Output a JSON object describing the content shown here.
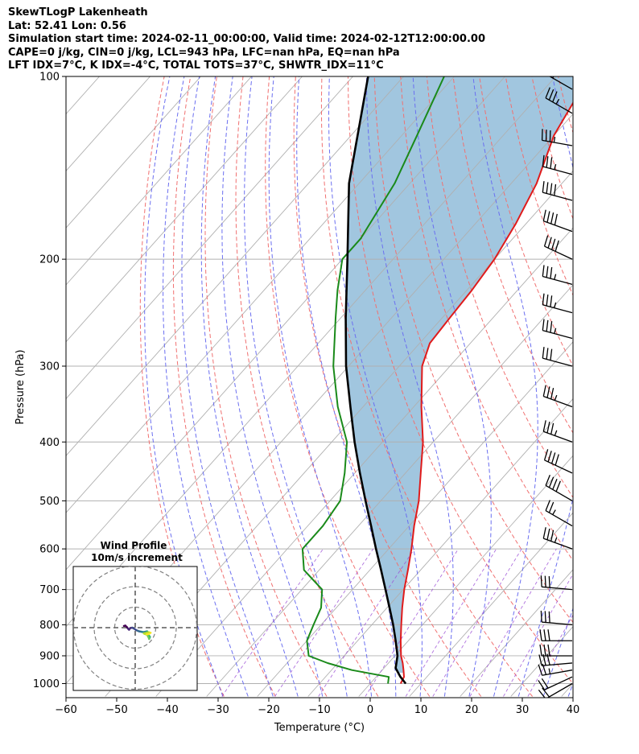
{
  "header": {
    "line1": "SkewTLogP Lakenheath",
    "line2": "Lat: 52.41   Lon: 0.56",
    "line3": "Simulation start time: 2024-02-11_00:00:00, Valid time: 2024-02-12T12:00:00.00",
    "line4": "CAPE=0 j/kg, CIN=0 j/kg, LCL=943 hPa, LFC=nan hPa, EQ=nan hPa",
    "line5": "LFT IDX=7°C, K IDX=-4°C, TOTAL TOTS=37°C, SHWTR_IDX=11°C"
  },
  "chart_data": {
    "type": "skewt",
    "xlabel": "Temperature (°C)",
    "ylabel": "Pressure (hPa)",
    "xlim": [
      -60,
      40
    ],
    "ylim": [
      1050,
      100
    ],
    "xticks": [
      "−60",
      "−50",
      "−40",
      "−30",
      "−20",
      "−10",
      "0",
      "10",
      "20",
      "30",
      "40"
    ],
    "yticks": [
      "100",
      "200",
      "300",
      "400",
      "500",
      "600",
      "700",
      "800",
      "900",
      "1000"
    ],
    "pressure_ticks": [
      100,
      200,
      300,
      400,
      500,
      600,
      700,
      800,
      900,
      1000
    ],
    "temperature_ticks": [
      -60,
      -50,
      -40,
      -30,
      -20,
      -10,
      0,
      10,
      20,
      30,
      40
    ],
    "temperature_profile": [
      [
        1000,
        6
      ],
      [
        975,
        5.5
      ],
      [
        950,
        4.2
      ],
      [
        925,
        2.8
      ],
      [
        900,
        1.2
      ],
      [
        850,
        -1.5
      ],
      [
        800,
        -4.2
      ],
      [
        750,
        -7
      ],
      [
        700,
        -9.8
      ],
      [
        650,
        -12.5
      ],
      [
        600,
        -15.5
      ],
      [
        550,
        -19
      ],
      [
        500,
        -22.5
      ],
      [
        450,
        -27
      ],
      [
        400,
        -32
      ],
      [
        350,
        -38.5
      ],
      [
        300,
        -45.5
      ],
      [
        275,
        -48
      ],
      [
        250,
        -48.5
      ],
      [
        225,
        -49
      ],
      [
        200,
        -50
      ],
      [
        175,
        -52
      ],
      [
        150,
        -55
      ],
      [
        125,
        -60
      ],
      [
        110,
        -62
      ],
      [
        100,
        -63.5
      ]
    ],
    "dewpoint_profile": [
      [
        1000,
        3.5
      ],
      [
        975,
        2.5
      ],
      [
        950,
        -6
      ],
      [
        925,
        -12
      ],
      [
        900,
        -17
      ],
      [
        850,
        -20
      ],
      [
        800,
        -21.5
      ],
      [
        750,
        -23
      ],
      [
        700,
        -26
      ],
      [
        650,
        -33
      ],
      [
        600,
        -37
      ],
      [
        550,
        -37
      ],
      [
        500,
        -38
      ],
      [
        450,
        -42
      ],
      [
        400,
        -47
      ],
      [
        350,
        -55
      ],
      [
        300,
        -63
      ],
      [
        250,
        -71
      ],
      [
        225,
        -75.5
      ],
      [
        200,
        -80
      ],
      [
        185,
        -80
      ],
      [
        150,
        -83
      ],
      [
        125,
        -87
      ],
      [
        100,
        -92
      ]
    ],
    "parcel_profile": [
      [
        1000,
        7
      ],
      [
        975,
        4.8
      ],
      [
        943,
        2.3
      ],
      [
        900,
        0.5
      ],
      [
        850,
        -2.5
      ],
      [
        800,
        -5.8
      ],
      [
        750,
        -9.5
      ],
      [
        700,
        -13.5
      ],
      [
        650,
        -17.8
      ],
      [
        600,
        -22.5
      ],
      [
        550,
        -27.5
      ],
      [
        500,
        -33
      ],
      [
        450,
        -39
      ],
      [
        400,
        -45.5
      ],
      [
        350,
        -52.5
      ],
      [
        300,
        -60.5
      ],
      [
        250,
        -69
      ],
      [
        200,
        -79
      ],
      [
        150,
        -92
      ],
      [
        100,
        -107
      ]
    ],
    "wind_barbs": [
      {
        "p": 1000,
        "speed_kt": 20,
        "dir_deg": 240
      },
      {
        "p": 975,
        "speed_kt": 20,
        "dir_deg": 245
      },
      {
        "p": 950,
        "speed_kt": 25,
        "dir_deg": 260
      },
      {
        "p": 925,
        "speed_kt": 30,
        "dir_deg": 265
      },
      {
        "p": 900,
        "speed_kt": 30,
        "dir_deg": 270
      },
      {
        "p": 850,
        "speed_kt": 30,
        "dir_deg": 270
      },
      {
        "p": 800,
        "speed_kt": 30,
        "dir_deg": 275
      },
      {
        "p": 700,
        "speed_kt": 30,
        "dir_deg": 275
      },
      {
        "p": 600,
        "speed_kt": 35,
        "dir_deg": 290
      },
      {
        "p": 550,
        "speed_kt": 25,
        "dir_deg": 300
      },
      {
        "p": 500,
        "speed_kt": 40,
        "dir_deg": 300
      },
      {
        "p": 450,
        "speed_kt": 40,
        "dir_deg": 295
      },
      {
        "p": 400,
        "speed_kt": 35,
        "dir_deg": 290
      },
      {
        "p": 350,
        "speed_kt": 35,
        "dir_deg": 290
      },
      {
        "p": 300,
        "speed_kt": 30,
        "dir_deg": 285
      },
      {
        "p": 270,
        "speed_kt": 35,
        "dir_deg": 285
      },
      {
        "p": 245,
        "speed_kt": 35,
        "dir_deg": 285
      },
      {
        "p": 220,
        "speed_kt": 35,
        "dir_deg": 285
      },
      {
        "p": 200,
        "speed_kt": 40,
        "dir_deg": 295
      },
      {
        "p": 180,
        "speed_kt": 40,
        "dir_deg": 290
      },
      {
        "p": 160,
        "speed_kt": 40,
        "dir_deg": 285
      },
      {
        "p": 145,
        "speed_kt": 35,
        "dir_deg": 285
      },
      {
        "p": 130,
        "speed_kt": 35,
        "dir_deg": 280
      },
      {
        "p": 115,
        "speed_kt": 35,
        "dir_deg": 300
      },
      {
        "p": 105,
        "speed_kt": 25,
        "dir_deg": 300
      }
    ],
    "inset": {
      "title": "Wind Profile",
      "subtitle": "10m/s increment",
      "rings_ms": [
        10,
        20,
        30
      ],
      "hodograph_uv": [
        [
          -5.5,
          0.8
        ],
        [
          -4.8,
          1
        ],
        [
          -4,
          0.2
        ],
        [
          -3.5,
          -0.5
        ],
        [
          -3,
          -1
        ],
        [
          -2.5,
          -0.3
        ],
        [
          -1.5,
          0
        ],
        [
          -0.5,
          -0.5
        ],
        [
          0.5,
          -1.2
        ],
        [
          1.2,
          -1.5
        ],
        [
          2,
          -1.8
        ],
        [
          3,
          -2
        ],
        [
          4,
          -2.2
        ],
        [
          5,
          -2
        ],
        [
          5.8,
          -1.8
        ],
        [
          6,
          -2.2
        ],
        [
          5.8,
          -3
        ],
        [
          6.5,
          -3.5
        ],
        [
          7.2,
          -4.5
        ],
        [
          6.8,
          -5.5
        ],
        [
          6.3,
          -4.3
        ],
        [
          5.8,
          -3.5
        ],
        [
          4.8,
          -3.1
        ],
        [
          4.2,
          -2.8
        ],
        [
          6.5,
          -2.2
        ],
        [
          7.5,
          -2.5
        ],
        [
          6.8,
          -3
        ],
        [
          5.5,
          -3.3
        ]
      ]
    }
  }
}
